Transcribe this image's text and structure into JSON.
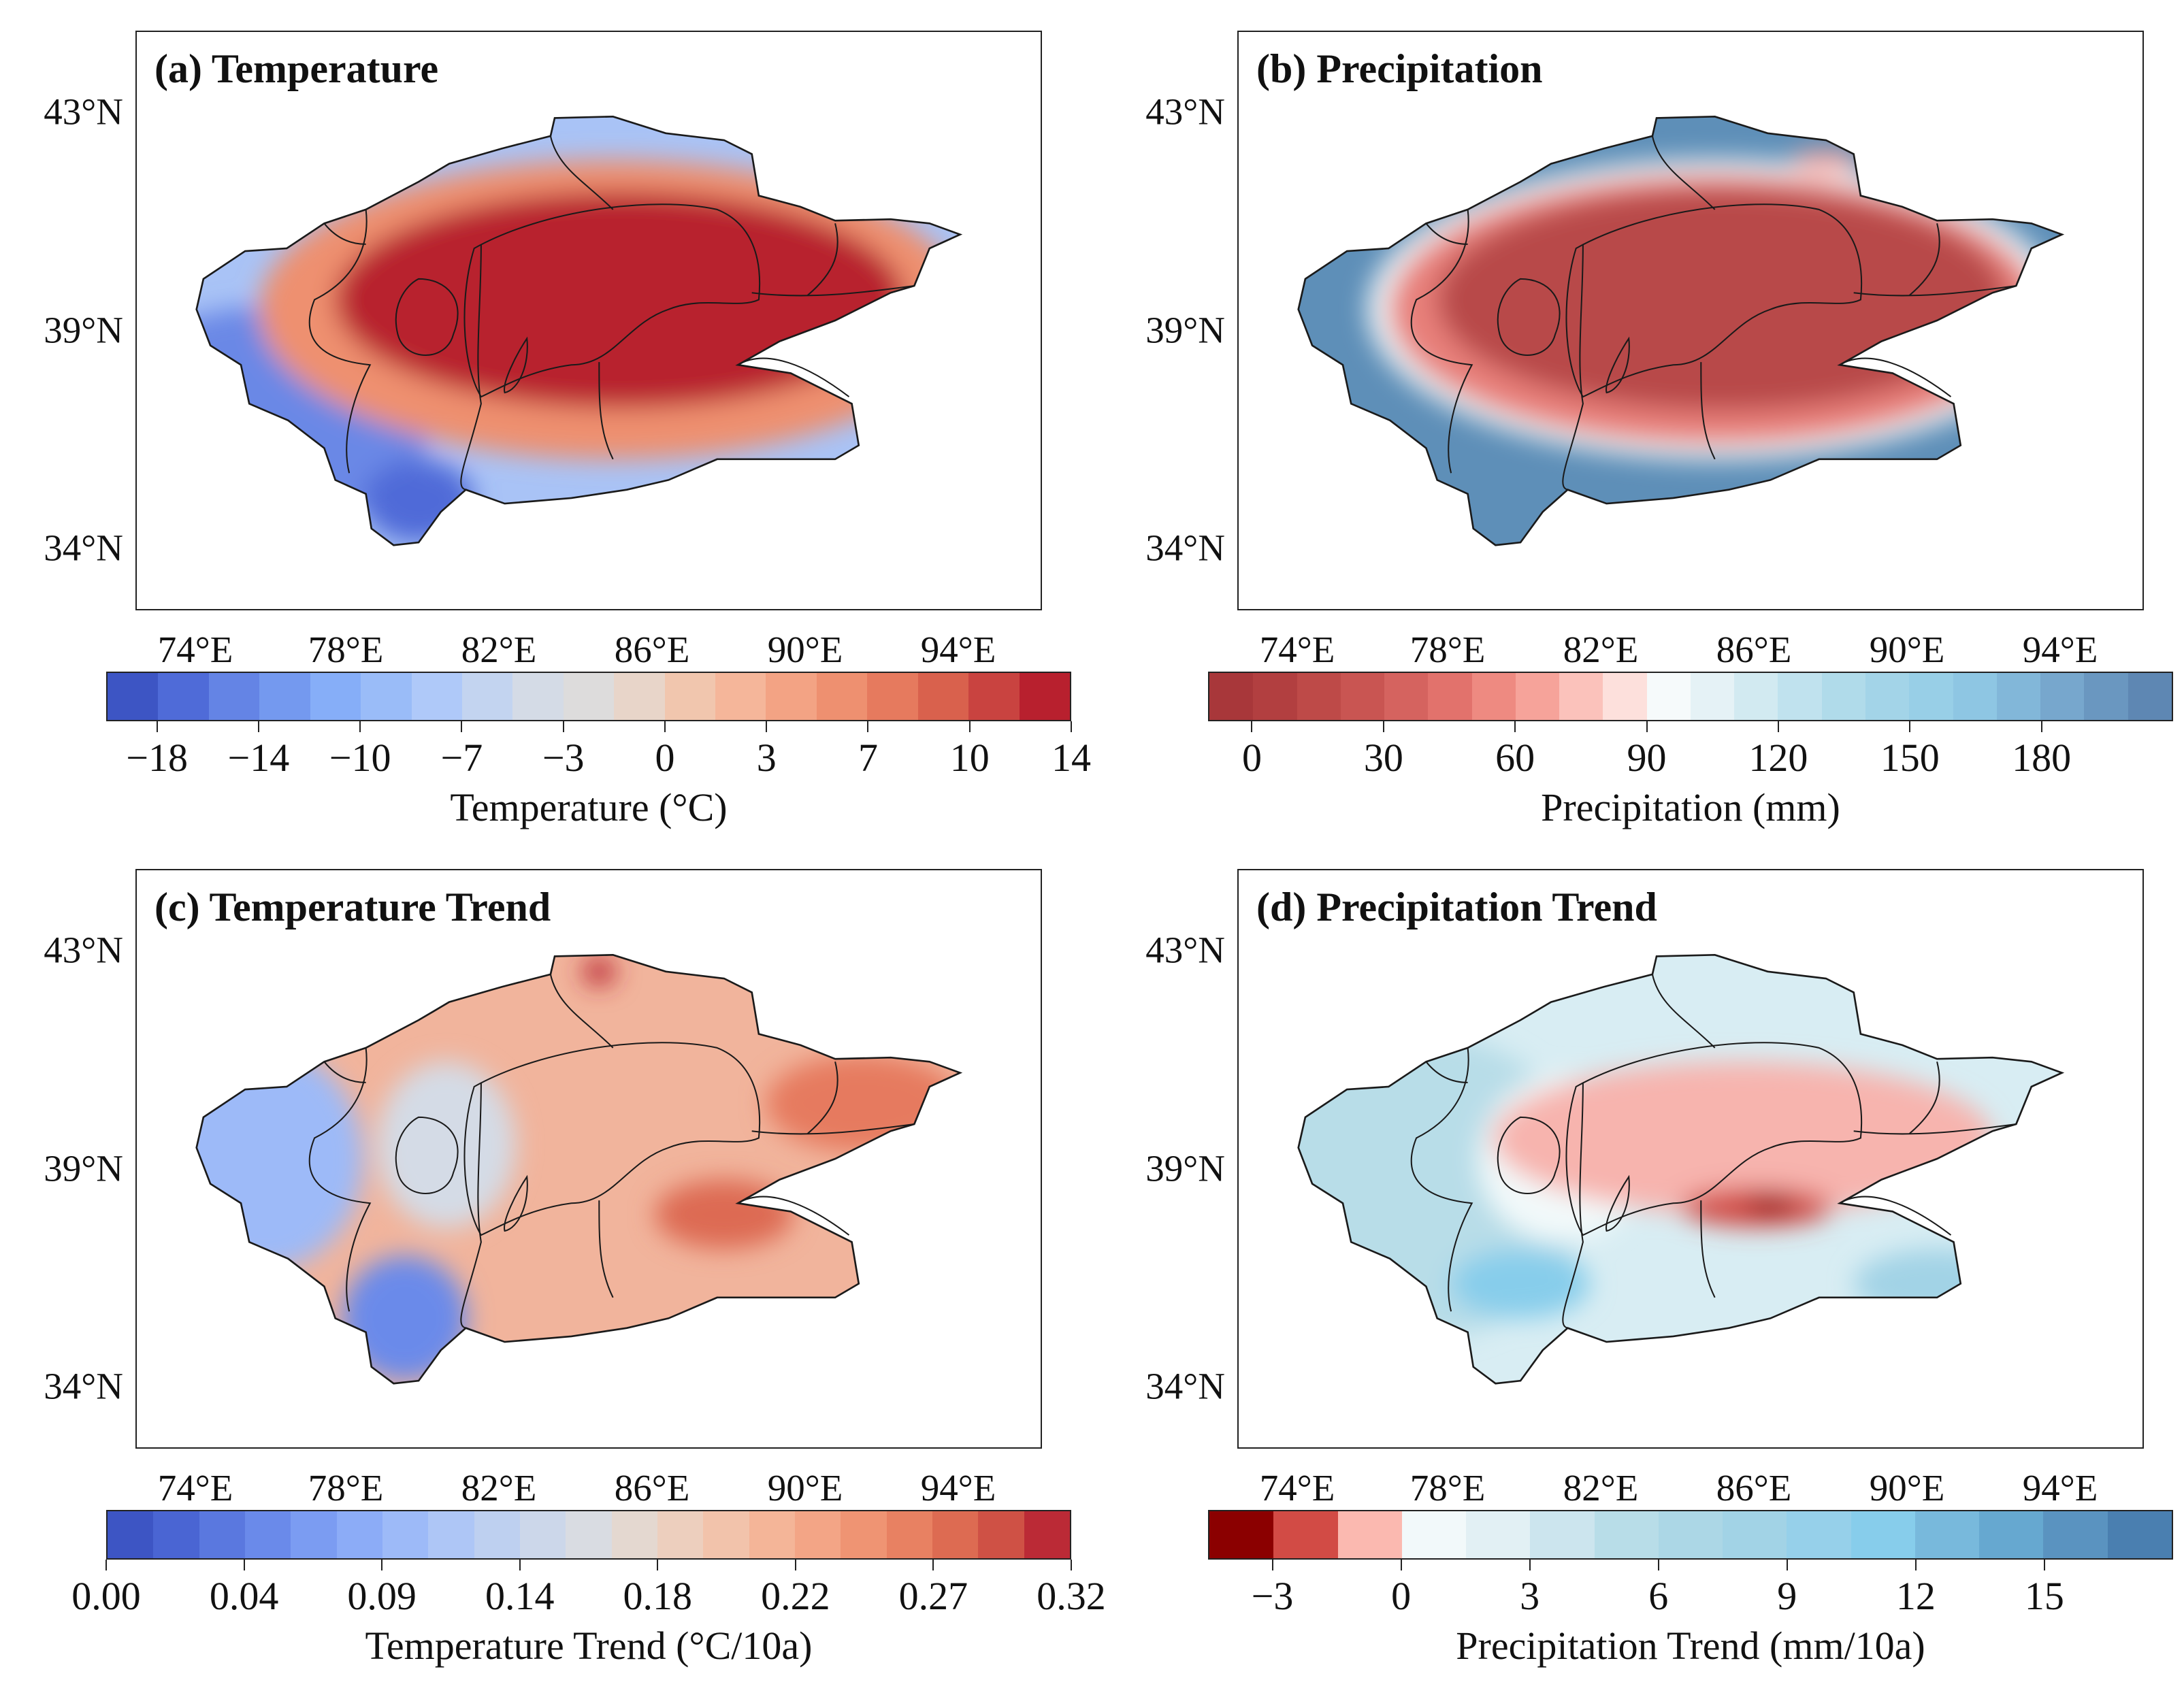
{
  "chart_data": [
    {
      "type": "heatmap",
      "title": "(a) Temperature",
      "lat_ticks": [
        "43°N",
        "39°N",
        "34°N"
      ],
      "lon_ticks": [
        "74°E",
        "78°E",
        "82°E",
        "86°E",
        "90°E",
        "94°E"
      ],
      "colorbar": {
        "label": "Temperature (°C)",
        "colors": [
          "#3d55c4",
          "#4f6bd8",
          "#6484e5",
          "#7499ef",
          "#86aef8",
          "#9abcf8",
          "#afc9f9",
          "#c3d4f0",
          "#d4dbe6",
          "#dddcdc",
          "#e8d5c9",
          "#f1c6ae",
          "#f5b69a",
          "#f3a384",
          "#ee9070",
          "#e67a5e",
          "#d9614d",
          "#c94340",
          "#b8202e"
        ],
        "ticks": [
          {
            "label": "-18",
            "boundary": 1
          },
          {
            "label": "-14",
            "boundary": 3
          },
          {
            "label": "-10",
            "boundary": 5
          },
          {
            "label": "-7",
            "boundary": 7
          },
          {
            "label": "-3",
            "boundary": 9
          },
          {
            "label": "0",
            "boundary": 11
          },
          {
            "label": "3",
            "boundary": 13
          },
          {
            "label": "7",
            "boundary": 15
          },
          {
            "label": "10",
            "boundary": 17
          },
          {
            "label": "14",
            "boundary": 19
          }
        ]
      }
    },
    {
      "type": "heatmap",
      "title": "(b) Precipitation",
      "lat_ticks": [
        "43°N",
        "39°N",
        "34°N"
      ],
      "lon_ticks": [
        "74°E",
        "78°E",
        "82°E",
        "86°E",
        "90°E",
        "94°E"
      ],
      "colorbar": {
        "label": "Precipitation (mm)",
        "colors": [
          "#a8373a",
          "#b23f40",
          "#be4a48",
          "#c95552",
          "#d5635f",
          "#e2726c",
          "#ee8a81",
          "#f6a39a",
          "#fbc2bb",
          "#fde0dc",
          "#f6fafb",
          "#e5f2f6",
          "#d2eaf1",
          "#c0e2ee",
          "#b0dbea",
          "#a3d4e8",
          "#98cfe7",
          "#8ec6e3",
          "#82b7d9",
          "#77a7cd",
          "#6a97c0",
          "#5e87b3"
        ],
        "ticks": [
          {
            "label": "0",
            "boundary": 1
          },
          {
            "label": "30",
            "boundary": 4
          },
          {
            "label": "60",
            "boundary": 7
          },
          {
            "label": "90",
            "boundary": 10
          },
          {
            "label": "120",
            "boundary": 13
          },
          {
            "label": "150",
            "boundary": 16
          },
          {
            "label": "180",
            "boundary": 19
          }
        ]
      }
    },
    {
      "type": "heatmap",
      "title": "(c) Temperature Trend",
      "lat_ticks": [
        "43°N",
        "39°N",
        "34°N"
      ],
      "lon_ticks": [
        "74°E",
        "78°E",
        "82°E",
        "86°E",
        "90°E",
        "94°E"
      ],
      "colorbar": {
        "label": "Temperature Trend (°C/10a)",
        "colors": [
          "#3d55c4",
          "#4a65d3",
          "#5a78df",
          "#6a8aea",
          "#7b9cf2",
          "#8cacf7",
          "#9dbaf8",
          "#aec6f6",
          "#bed0f0",
          "#ccd7ea",
          "#d9dce2",
          "#e4d8d0",
          "#edcfbe",
          "#f2c3ab",
          "#f4b598",
          "#f3a586",
          "#ef9473",
          "#e88162",
          "#dd6b52",
          "#cf5145",
          "#bb2a36"
        ],
        "ticks": [
          {
            "label": "0.00",
            "boundary": 0
          },
          {
            "label": "0.04",
            "boundary": 3
          },
          {
            "label": "0.09",
            "boundary": 6
          },
          {
            "label": "0.14",
            "boundary": 9
          },
          {
            "label": "0.18",
            "boundary": 12
          },
          {
            "label": "0.22",
            "boundary": 15
          },
          {
            "label": "0.27",
            "boundary": 18
          },
          {
            "label": "0.32",
            "boundary": 21
          }
        ]
      }
    },
    {
      "type": "heatmap",
      "title": "(d) Precipitation Trend",
      "lat_ticks": [
        "43°N",
        "39°N",
        "34°N"
      ],
      "lon_ticks": [
        "74°E",
        "78°E",
        "82°E",
        "86°E",
        "90°E",
        "94°E"
      ],
      "colorbar": {
        "label": "Precipitation Trend (mm/10a)",
        "colors": [
          "#8b0000",
          "#d24b45",
          "#fbb9b0",
          "#f2f9fa",
          "#e2f0f4",
          "#cce5ee",
          "#b8dde8",
          "#acd7e6",
          "#a2d3e6",
          "#96d0ea",
          "#87cdeb",
          "#78b9dc",
          "#66a8d0",
          "#5a93c0",
          "#4a7fb0"
        ],
        "ticks": [
          {
            "label": "-3",
            "boundary": 1
          },
          {
            "label": "0",
            "boundary": 3
          },
          {
            "label": "3",
            "boundary": 5
          },
          {
            "label": "6",
            "boundary": 7
          },
          {
            "label": "9",
            "boundary": 9
          },
          {
            "label": "12",
            "boundary": 11
          },
          {
            "label": "15",
            "boundary": 13
          }
        ]
      }
    }
  ]
}
